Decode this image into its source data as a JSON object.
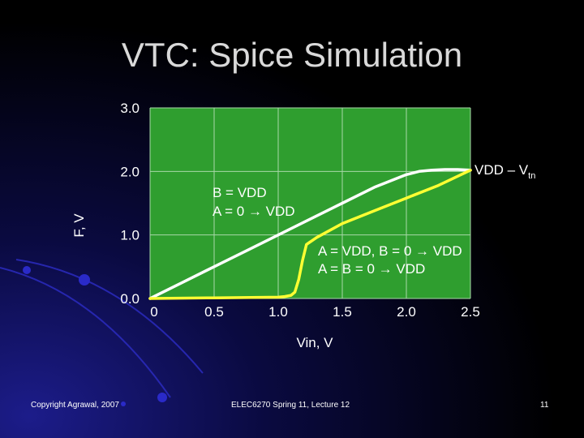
{
  "slide": {
    "title": "VTC: Spice Simulation",
    "footer_left": "Copyright Agrawal, 2007",
    "footer_center": "ELEC6270 Spring 11, Lecture 12",
    "footer_right": "11"
  },
  "colors": {
    "background": "#000000",
    "plot_background": "#2f9e2f",
    "grid": "#a8d8a8",
    "curve_white": "#ffffff",
    "curve_yellow": "#ffff33",
    "decor_blue": "#1a1a9a"
  },
  "chart_data": {
    "type": "line",
    "xlabel": "Vin, V",
    "ylabel": "F, V",
    "xlim": [
      0,
      2.5
    ],
    "ylim": [
      0,
      3.0
    ],
    "x_ticks": [
      "0",
      "0.5",
      "1.0",
      "1.5",
      "2.0",
      "2.5"
    ],
    "y_ticks": [
      "0.0",
      "1.0",
      "2.0",
      "3.0"
    ],
    "grid": true,
    "series": [
      {
        "color": "#ffffff",
        "x": [
          0,
          0.25,
          0.5,
          0.75,
          1.0,
          1.25,
          1.5,
          1.75,
          2.0,
          2.1,
          2.2,
          2.3,
          2.4,
          2.5
        ],
        "y": [
          0.0,
          0.25,
          0.5,
          0.75,
          1.0,
          1.25,
          1.5,
          1.75,
          1.95,
          2.0,
          2.02,
          2.03,
          2.03,
          2.02
        ]
      },
      {
        "color": "#ffff33",
        "x": [
          0,
          0.5,
          1.0,
          1.05,
          1.1,
          1.13,
          1.16,
          1.19,
          1.22,
          1.3,
          1.5,
          1.75,
          2.0,
          2.25,
          2.5
        ],
        "y": [
          0.0,
          0.01,
          0.02,
          0.03,
          0.05,
          0.1,
          0.3,
          0.6,
          0.85,
          0.96,
          1.18,
          1.38,
          1.58,
          1.78,
          2.02
        ]
      }
    ],
    "annotations": {
      "vdd_vtn_main": "VDD – V",
      "vdd_vtn_sub": "tn",
      "white_line1": "B = VDD",
      "white_line2": "A = 0 → VDD",
      "yellow_line1": "A = VDD, B = 0 → VDD",
      "yellow_line2": "A = B = 0 → VDD"
    }
  }
}
